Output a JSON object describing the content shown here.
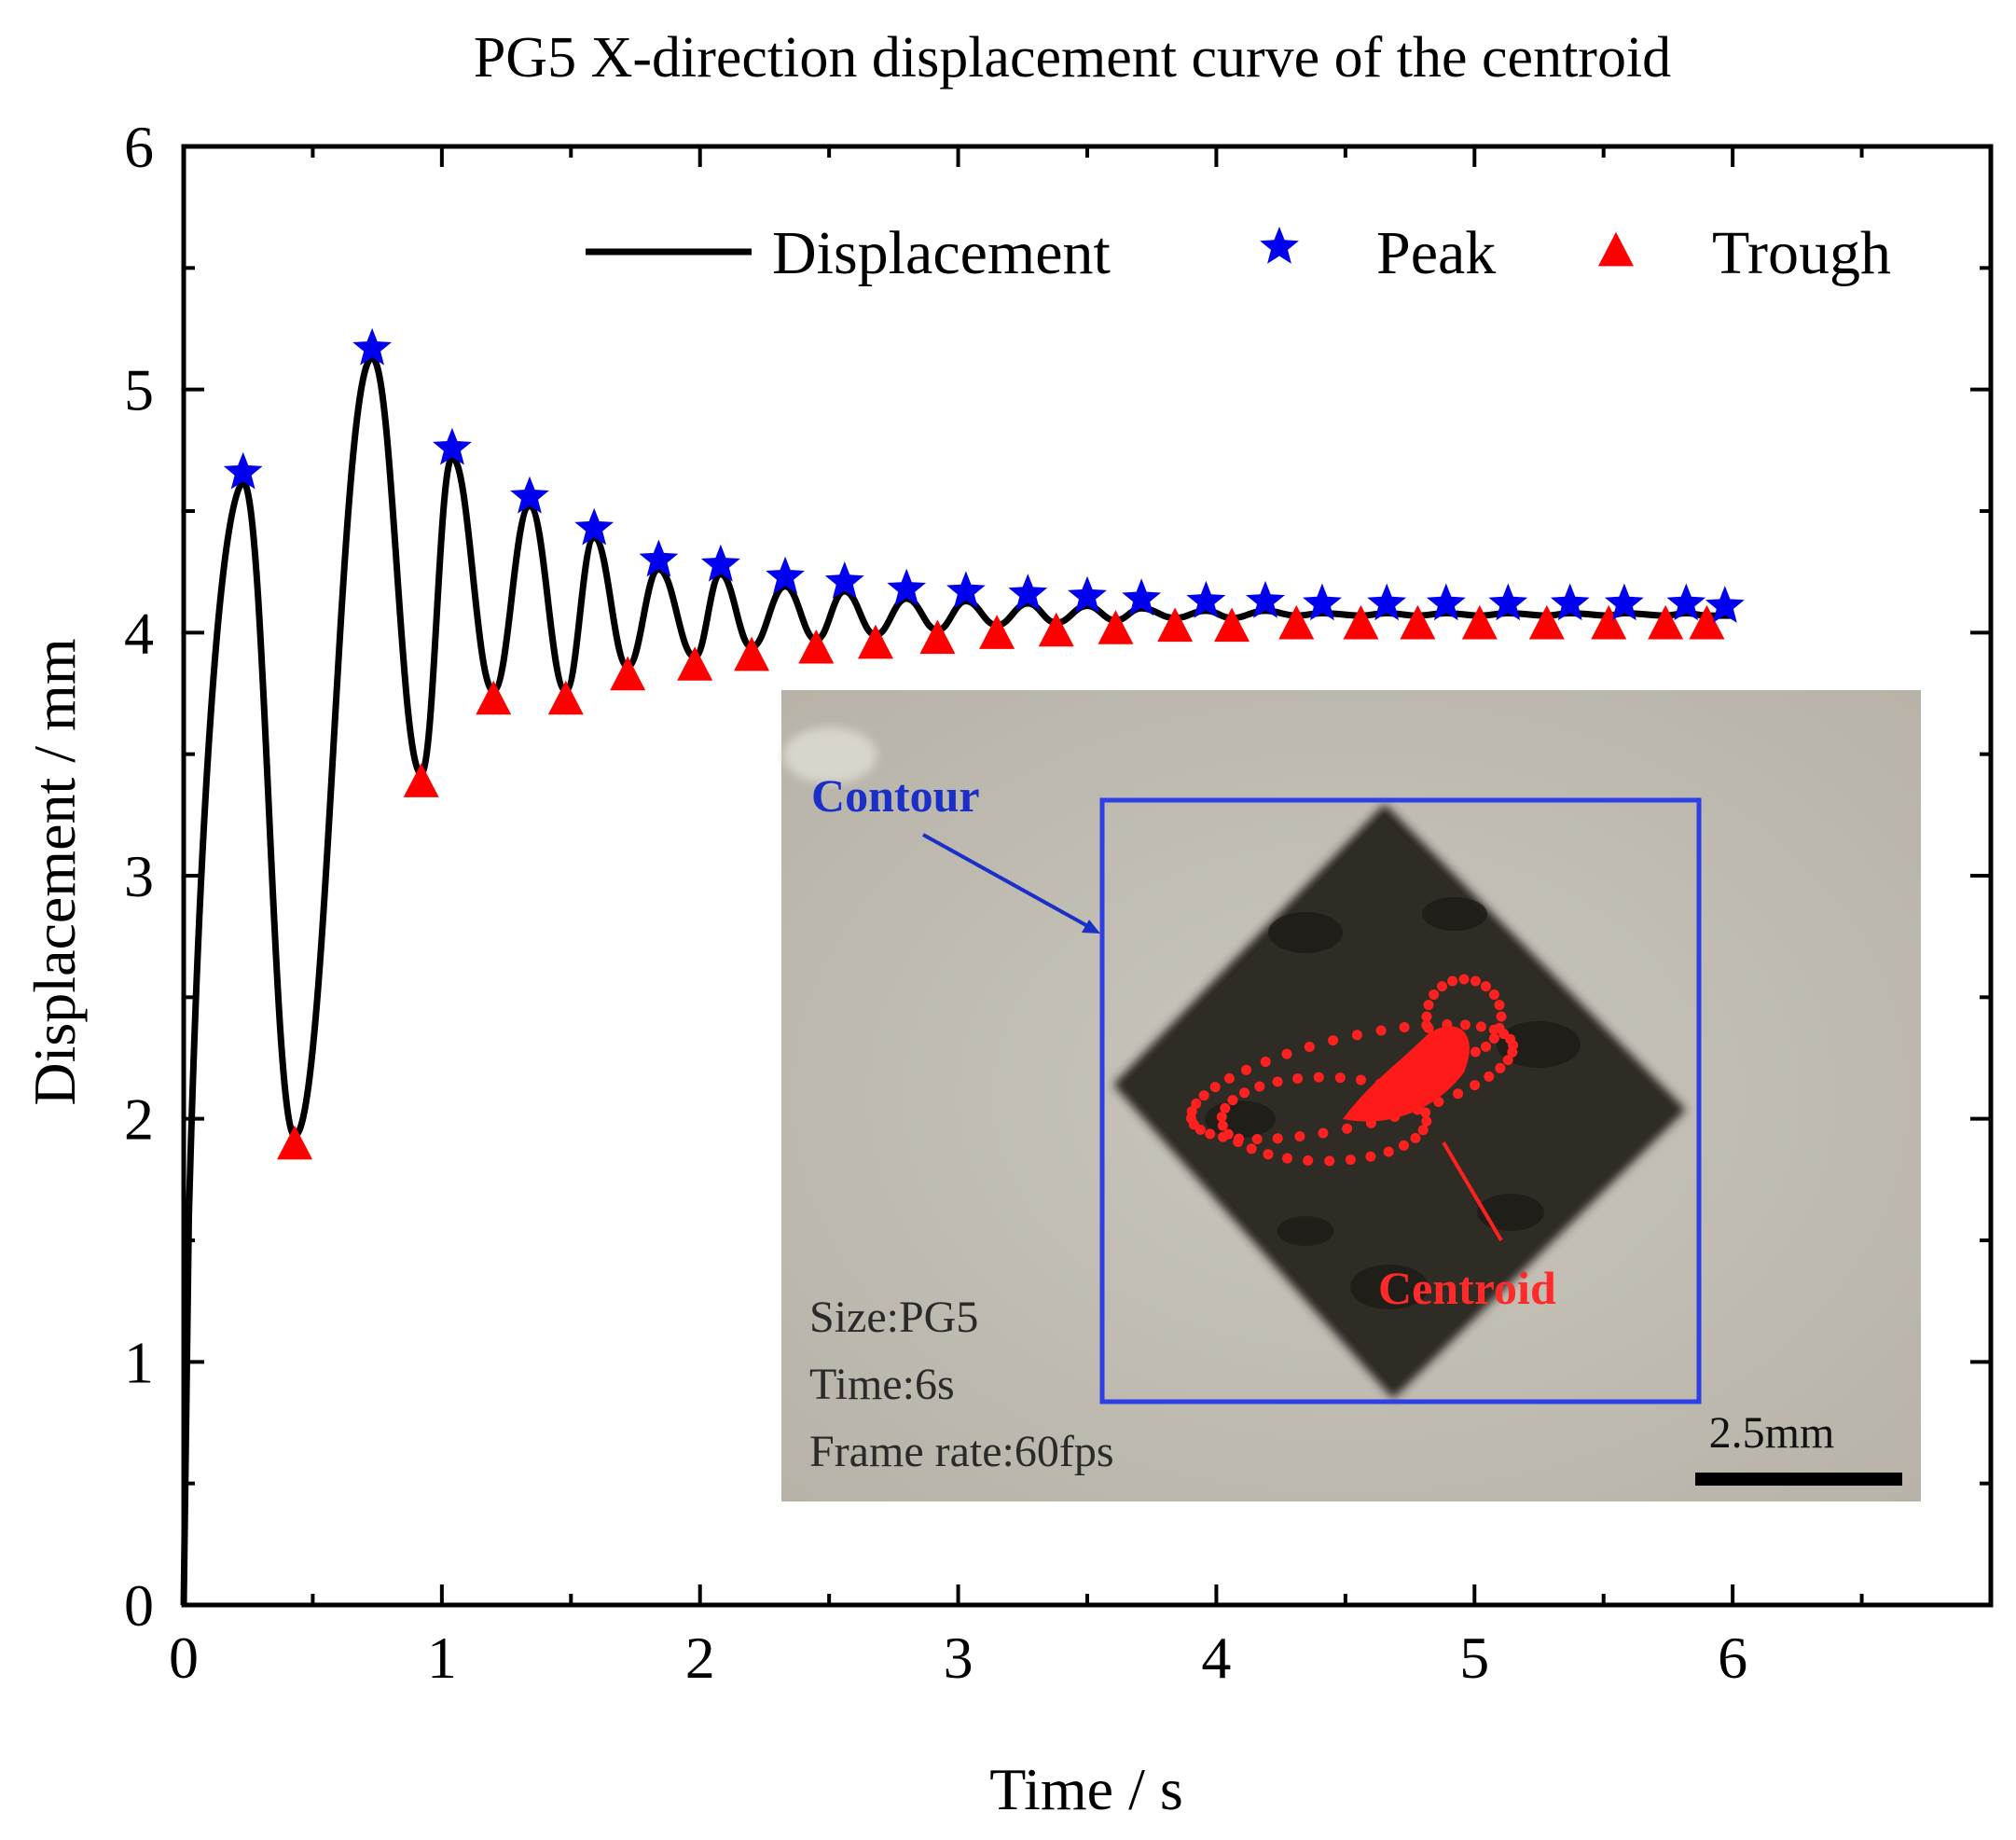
{
  "chart_data": {
    "type": "line",
    "title": "PG5 X-direction displacement curve of the centroid",
    "xlabel": "Time / s",
    "ylabel": "Displacement / mm",
    "xlim": [
      0,
      7
    ],
    "ylim": [
      0,
      6
    ],
    "xticks": [
      "0",
      "1",
      "2",
      "3",
      "4",
      "5",
      "6"
    ],
    "yticks": [
      "0",
      "1",
      "2",
      "3",
      "4",
      "5",
      "6"
    ],
    "legend": {
      "placement": "top-right",
      "entries": [
        "Displacement",
        "Peak",
        "Trough"
      ]
    },
    "colors": {
      "displacement": "#000000",
      "peak": "#0000ee",
      "trough": "#ff0000"
    },
    "series": [
      {
        "name": "Peak",
        "marker": "star",
        "points": [
          [
            0.23,
            4.62
          ],
          [
            0.73,
            5.13
          ],
          [
            1.04,
            4.72
          ],
          [
            1.34,
            4.52
          ],
          [
            1.59,
            4.39
          ],
          [
            1.84,
            4.26
          ],
          [
            2.08,
            4.24
          ],
          [
            2.33,
            4.19
          ],
          [
            2.56,
            4.17
          ],
          [
            2.8,
            4.14
          ],
          [
            3.03,
            4.13
          ],
          [
            3.27,
            4.12
          ],
          [
            3.5,
            4.11
          ],
          [
            3.71,
            4.1
          ],
          [
            3.96,
            4.09
          ],
          [
            4.19,
            4.09
          ],
          [
            4.41,
            4.08
          ],
          [
            4.66,
            4.08
          ],
          [
            4.89,
            4.08
          ],
          [
            5.13,
            4.08
          ],
          [
            5.37,
            4.08
          ],
          [
            5.58,
            4.08
          ],
          [
            5.82,
            4.08
          ],
          [
            5.97,
            4.07
          ]
        ]
      },
      {
        "name": "Trough",
        "marker": "triangle",
        "points": [
          [
            0.43,
            1.93
          ],
          [
            0.92,
            3.42
          ],
          [
            1.2,
            3.76
          ],
          [
            1.48,
            3.76
          ],
          [
            1.72,
            3.86
          ],
          [
            1.98,
            3.9
          ],
          [
            2.2,
            3.94
          ],
          [
            2.45,
            3.97
          ],
          [
            2.68,
            3.99
          ],
          [
            2.92,
            4.01
          ],
          [
            3.15,
            4.03
          ],
          [
            3.38,
            4.04
          ],
          [
            3.61,
            4.05
          ],
          [
            3.84,
            4.06
          ],
          [
            4.06,
            4.06
          ],
          [
            4.31,
            4.07
          ],
          [
            4.56,
            4.07
          ],
          [
            4.78,
            4.07
          ],
          [
            5.02,
            4.07
          ],
          [
            5.28,
            4.07
          ],
          [
            5.52,
            4.07
          ],
          [
            5.74,
            4.07
          ],
          [
            5.9,
            4.07
          ]
        ]
      }
    ],
    "x_end": 6.0,
    "inset": {
      "contour_label": "Contour",
      "centroid_label": "Centroid",
      "info_lines": [
        "Size:PG5",
        "Time:6s",
        "Frame rate:60fps"
      ],
      "scale_bar_label": "2.5mm"
    }
  }
}
